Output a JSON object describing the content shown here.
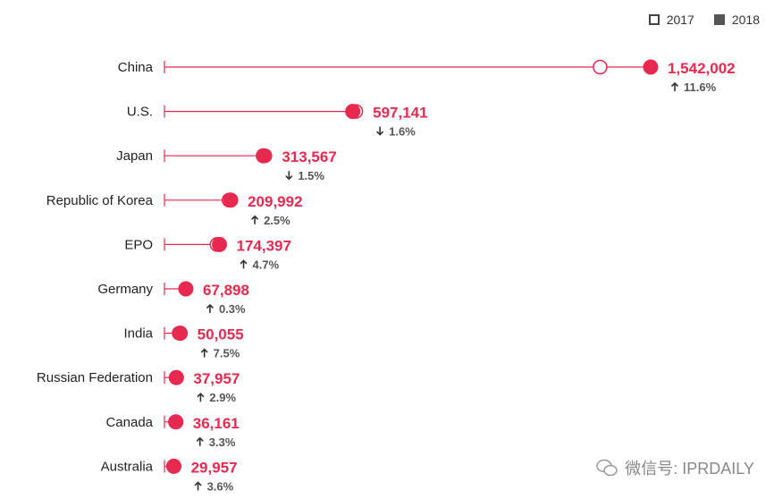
{
  "legend": {
    "label_2017": "2017",
    "label_2018": "2018"
  },
  "watermark": "微信号: IPRDAILY",
  "colors": {
    "accent": "#e8294f",
    "text": "#222222",
    "change": "#555555"
  },
  "chart_data": {
    "type": "dumbbell",
    "series": [
      {
        "name": "2017",
        "style": "hollow"
      },
      {
        "name": "2018",
        "style": "filled"
      }
    ],
    "rows": [
      {
        "label": "China",
        "v2017": 1381594,
        "v2018": 1542002,
        "value_label": "1,542,002",
        "direction": "up",
        "change": "11.6%"
      },
      {
        "label": "U.S.",
        "v2017": 606956,
        "v2018": 597141,
        "value_label": "597,141",
        "direction": "down",
        "change": "1.6%"
      },
      {
        "label": "Japan",
        "v2017": 318479,
        "v2018": 313567,
        "value_label": "313,567",
        "direction": "down",
        "change": "1.5%"
      },
      {
        "label": "Republic of Korea",
        "v2017": 204775,
        "v2018": 209992,
        "value_label": "209,992",
        "direction": "up",
        "change": "2.5%"
      },
      {
        "label": "EPO",
        "v2017": 166585,
        "v2018": 174397,
        "value_label": "174,397",
        "direction": "up",
        "change": "4.7%"
      },
      {
        "label": "Germany",
        "v2017": 67712,
        "v2018": 67898,
        "value_label": "67,898",
        "direction": "up",
        "change": "0.3%"
      },
      {
        "label": "India",
        "v2017": 46582,
        "v2018": 50055,
        "value_label": "50,055",
        "direction": "up",
        "change": "7.5%"
      },
      {
        "label": "Russian Federation",
        "v2017": 36883,
        "v2018": 37957,
        "value_label": "37,957",
        "direction": "up",
        "change": "2.9%"
      },
      {
        "label": "Canada",
        "v2017": 35022,
        "v2018": 36161,
        "value_label": "36,161",
        "direction": "up",
        "change": "3.3%"
      },
      {
        "label": "Australia",
        "v2017": 28906,
        "v2018": 29957,
        "value_label": "29,957",
        "direction": "up",
        "change": "3.6%"
      }
    ],
    "xlim": [
      0,
      1600000
    ],
    "grid": false,
    "legend_position": "top-right"
  }
}
